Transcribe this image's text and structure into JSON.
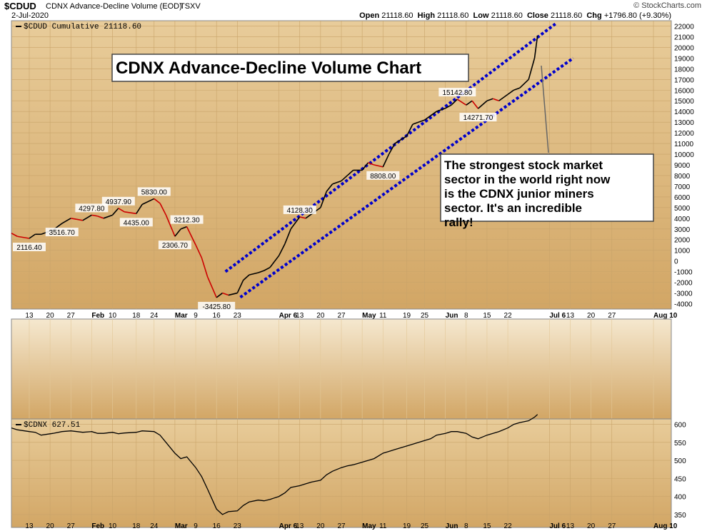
{
  "header": {
    "symbol": "$CDUD",
    "description": "CDNX Advance-Decline Volume (EOD)",
    "exchange": "TSXV",
    "date": "2-Jul-2020",
    "open_label": "Open",
    "open": "21118.60",
    "high_label": "High",
    "high": "21118.60",
    "low_label": "Low",
    "low": "21118.60",
    "close_label": "Close",
    "close": "21118.60",
    "chg_label": "Chg",
    "chg": "+1796.80 (+9.30%)",
    "brand": "© StockCharts.com"
  },
  "colors": {
    "background": "#d9b276",
    "accent_line": "#0000cc",
    "down_segment": "#cc0000",
    "up_segment": "#000000"
  },
  "chart_data": [
    {
      "type": "line",
      "legend": "$CDUD Cumulative 21118.60",
      "title": "CDNX Advance-Decline Volume Chart",
      "ylim": [
        -4500,
        22500
      ],
      "yticks": [
        -4000,
        -3000,
        -2000,
        -1000,
        0,
        1000,
        2000,
        3000,
        4000,
        5000,
        6000,
        7000,
        8000,
        9000,
        10000,
        11000,
        12000,
        13000,
        14000,
        15000,
        16000,
        17000,
        18000,
        19000,
        20000,
        21000,
        22000
      ],
      "x_tick_labels": [
        "13",
        "20",
        "27",
        "Feb",
        "10",
        "18",
        "24",
        "Mar",
        "9",
        "16",
        "23",
        "Apr 6",
        "13",
        "20",
        "27",
        "May",
        "11",
        "19",
        "25",
        "Jun",
        "8",
        "15",
        "22",
        "Jul 6",
        "13",
        "20",
        "27",
        "Aug 10"
      ],
      "x": [
        "Jan 7",
        "Jan 9",
        "Jan 13",
        "Jan 15",
        "Jan 17",
        "Jan 21",
        "Jan 24",
        "Jan 27",
        "Jan 29",
        "Jan 31",
        "Feb 3",
        "Feb 5",
        "Feb 7",
        "Feb 10",
        "Feb 12",
        "Feb 14",
        "Feb 18",
        "Feb 20",
        "Feb 24",
        "Feb 26",
        "Feb 28",
        "Mar 2",
        "Mar 4",
        "Mar 6",
        "Mar 9",
        "Mar 11",
        "Mar 13",
        "Mar 16",
        "Mar 18",
        "Mar 20",
        "Mar 23",
        "Mar 25",
        "Mar 27",
        "Mar 30",
        "Apr 1",
        "Apr 3",
        "Apr 6",
        "Apr 8",
        "Apr 10",
        "Apr 13",
        "Apr 15",
        "Apr 17",
        "Apr 20",
        "Apr 22",
        "Apr 24",
        "Apr 27",
        "Apr 29",
        "May 1",
        "May 4",
        "May 6",
        "May 8",
        "May 11",
        "May 13",
        "May 15",
        "May 19",
        "May 21",
        "May 25",
        "May 27",
        "May 29",
        "Jun 1",
        "Jun 3",
        "Jun 5",
        "Jun 8",
        "Jun 10",
        "Jun 12",
        "Jun 15",
        "Jun 17",
        "Jun 19",
        "Jun 22",
        "Jun 24",
        "Jun 26",
        "Jun 29",
        "Jul 1",
        "Jul 2"
      ],
      "values": [
        2600,
        2300,
        2116.4,
        2500,
        2500,
        2900,
        3516.7,
        4000,
        3900,
        3800,
        4297.8,
        4200,
        4000,
        4300,
        4937.9,
        4600,
        4435,
        5300,
        5830,
        5400,
        4300,
        2306.7,
        3000,
        3212.3,
        1500,
        300,
        -1500,
        -3425.8,
        -3000,
        -3200,
        -3000,
        -1800,
        -1300,
        -1100,
        -900,
        -600,
        500,
        1600,
        3000,
        4128.3,
        4000,
        4400,
        5000,
        6500,
        7200,
        7500,
        8000,
        8500,
        8500,
        9200,
        9000,
        8808,
        10000,
        11000,
        11700,
        12800,
        13200,
        13600,
        14000,
        14300,
        14600,
        15142.8,
        14600,
        15000,
        14271.7,
        15000,
        15200,
        15000,
        15600,
        16000,
        16200,
        17000,
        19000,
        21118.6
      ],
      "annotations": [
        {
          "label": "2116.40"
        },
        {
          "label": "3516.70"
        },
        {
          "label": "4297.80"
        },
        {
          "label": "4937.90"
        },
        {
          "label": "4435.00"
        },
        {
          "label": "5830.00"
        },
        {
          "label": "2306.70"
        },
        {
          "label": "3212.30"
        },
        {
          "label": "-3425.80"
        },
        {
          "label": "4128.30"
        },
        {
          "label": "8808.00"
        },
        {
          "label": "15142.80"
        },
        {
          "label": "14271.70"
        }
      ],
      "trend_channel": [
        {
          "from": [
            "Mar 19",
            -1000
          ],
          "to": [
            "Jul 8",
            22200
          ]
        },
        {
          "from": [
            "Mar 24",
            -3400
          ],
          "to": [
            "Jul 14",
            19000
          ]
        }
      ],
      "callout": "The strongest stock market sector in the world right now is the CDNX junior miners sector. It's an incredible rally!"
    },
    {
      "type": "line",
      "legend": "$CDNX 627.51",
      "ylim": [
        330,
        615
      ],
      "yticks": [
        350,
        400,
        450,
        500,
        550,
        600
      ],
      "x_tick_labels": [
        "13",
        "20",
        "27",
        "Feb",
        "10",
        "18",
        "24",
        "Mar",
        "9",
        "16",
        "23",
        "Apr 6",
        "13",
        "20",
        "27",
        "May",
        "11",
        "19",
        "25",
        "Jun",
        "8",
        "15",
        "22",
        "Jul 6",
        "13",
        "20",
        "27",
        "Aug 10"
      ],
      "values": [
        590,
        585,
        580,
        578,
        570,
        575,
        580,
        582,
        580,
        578,
        580,
        575,
        575,
        578,
        574,
        576,
        578,
        582,
        580,
        570,
        550,
        520,
        505,
        510,
        480,
        455,
        420,
        365,
        350,
        358,
        360,
        375,
        385,
        390,
        388,
        392,
        400,
        410,
        425,
        430,
        435,
        440,
        445,
        460,
        470,
        480,
        485,
        488,
        495,
        500,
        505,
        520,
        525,
        530,
        540,
        545,
        555,
        560,
        570,
        575,
        580,
        580,
        575,
        565,
        560,
        570,
        575,
        580,
        590,
        600,
        605,
        610,
        620,
        627.51
      ]
    }
  ]
}
